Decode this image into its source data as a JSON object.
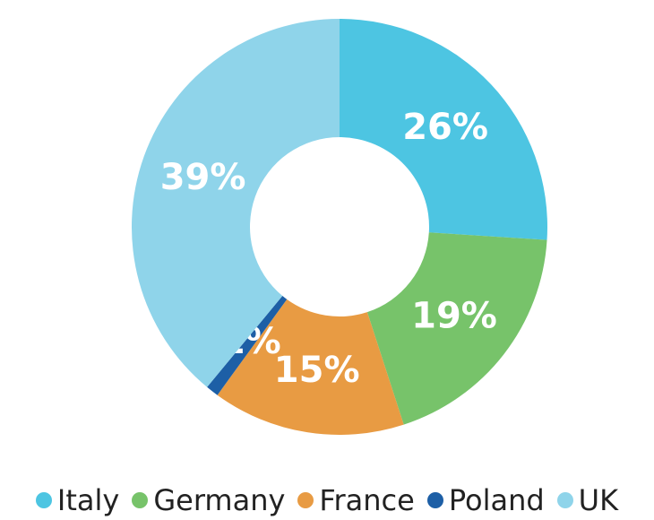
{
  "chart_data": {
    "type": "donut",
    "categories": [
      "Italy",
      "Germany",
      "France",
      "Poland",
      "UK"
    ],
    "values": [
      26,
      19,
      15,
      1,
      39
    ],
    "value_labels": [
      "26%",
      "19%",
      "15%",
      "1%",
      "39%"
    ],
    "colors": [
      "#4dc5e2",
      "#77c36a",
      "#e89b43",
      "#1d5fa6",
      "#8fd4ea"
    ],
    "legend": "bottom"
  }
}
